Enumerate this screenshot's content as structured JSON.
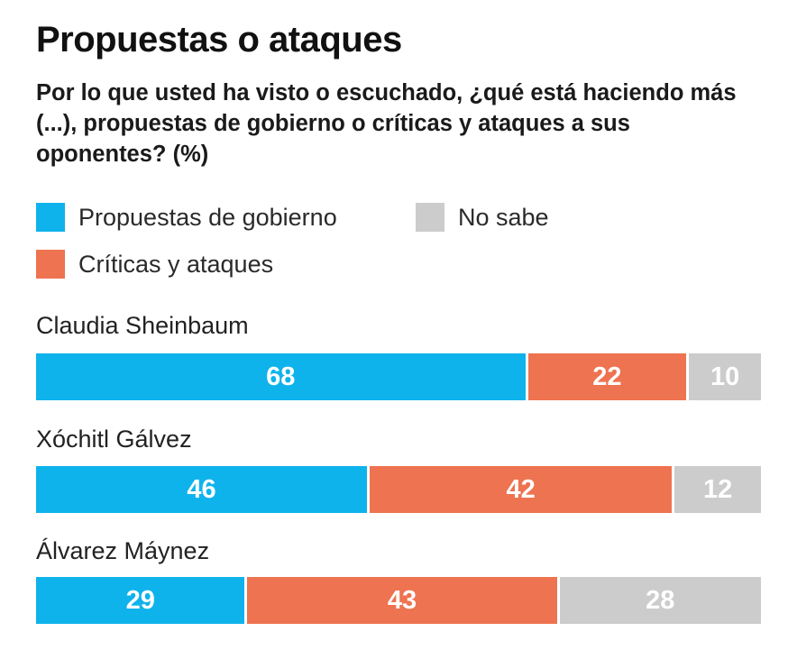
{
  "title": "Propuestas o ataques",
  "subtitle": "Por lo que usted ha visto o escuchado, ¿qué está haciendo más (...), propuestas de gobierno o críticas y ataques a sus oponentes? (%)",
  "legend": [
    {
      "label": "Propuestas de gobierno",
      "color": "#0fb3ec"
    },
    {
      "label": "No sabe",
      "color": "#cccccc"
    },
    {
      "label": "Críticas y ataques",
      "color": "#ee7350"
    }
  ],
  "chart_data": {
    "type": "bar",
    "orientation": "horizontal",
    "stacked": true,
    "title": "Propuestas o ataques",
    "subtitle": "Por lo que usted ha visto o escuchado, ¿qué está haciendo más (...), propuestas de gobierno o críticas y ataques a sus oponentes? (%)",
    "unit": "%",
    "categories": [
      "Claudia Sheinbaum",
      "Xóchitl Gálvez",
      "Álvarez Máynez"
    ],
    "series": [
      {
        "name": "Propuestas de gobierno",
        "color": "#0fb3ec",
        "values": [
          68,
          46,
          29
        ]
      },
      {
        "name": "Críticas y ataques",
        "color": "#ee7350",
        "values": [
          22,
          42,
          43
        ]
      },
      {
        "name": "No sabe",
        "color": "#cccccc",
        "values": [
          10,
          12,
          28
        ]
      }
    ],
    "xlim": [
      0,
      100
    ],
    "grid": false,
    "legend_position": "top"
  }
}
